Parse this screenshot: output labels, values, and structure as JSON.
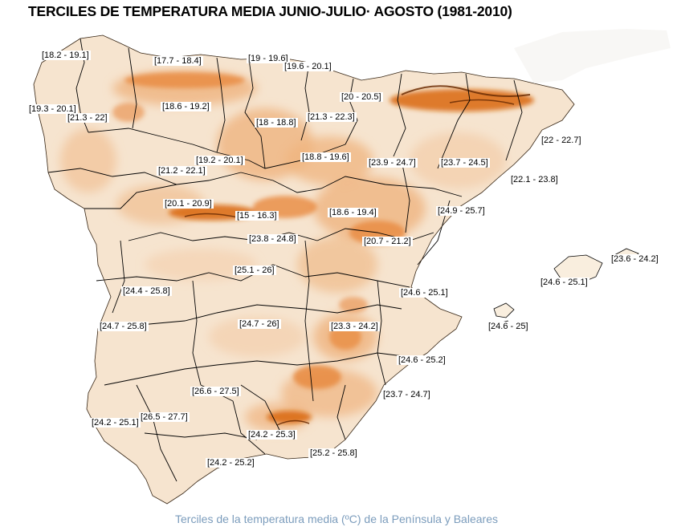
{
  "title": "TERCILES DE TEMPERATURA MEDIA JUNIO-JULIO· AGOSTO (1981-2010)",
  "caption": "Terciles de la temperatura media (ºC) de la Península y Baleares",
  "colors": {
    "base": "#f6e4cf",
    "light": "#f9eede",
    "mid": "#efb47f",
    "warm": "#e8893f",
    "hot": "#d9670f",
    "dark": "#6b2d05",
    "border": "#000000"
  },
  "labels": {
    "l1": "[18.2 - 19.1]",
    "l2": "[17.7 - 18.4]",
    "l3": "[19 - 19.6]",
    "l4": "[19.6 - 20.1]",
    "l5": "[20 - 20.5]",
    "l6": "[19.3 - 20.1]",
    "l7": "[21.3 - 22]",
    "l8": "[18.6 - 19.2]",
    "l9": "[18 - 18.8]",
    "l10": "[21.3 - 22.3]",
    "l11": "[22 - 22.7]",
    "l12": "[19.2 - 20.1]",
    "l13": "[18.8 - 19.6]",
    "l14": "[23.9 - 24.7]",
    "l15": "[23.7 - 24.5]",
    "l16": "[21.2 - 22.1]",
    "l17": "[22.1 - 23.8]",
    "l18": "[20.1 - 20.9]",
    "l19": "[15 - 16.3]",
    "l20": "[18.6 - 19.4]",
    "l21": "[24.9 - 25.7]",
    "l22": "[23.8 - 24.8]",
    "l23": "[20.7 - 21.2]",
    "l24": "[23.6 - 24.2]",
    "l25": "[25.1 - 26]",
    "l26": "[24.6 - 25.1]",
    "l27": "[24.4 - 25.8]",
    "l28": "[24.6 - 25.1]",
    "l29": "[24.7 - 25.8]",
    "l30": "[24.7 - 26]",
    "l31": "[23.3 - 24.2]",
    "l32": "[24.6 - 25]",
    "l33": "[24.6 - 25.2]",
    "l34": "[26.6 - 27.5]",
    "l35": "[23.7 - 24.7]",
    "l36": "[24.2 - 25.1]",
    "l37": "[26.5 - 27.7]",
    "l38": "[24.2 - 25.3]",
    "l39": "[25.2 - 25.8]",
    "l40": "[24.2 - 25.2]"
  }
}
